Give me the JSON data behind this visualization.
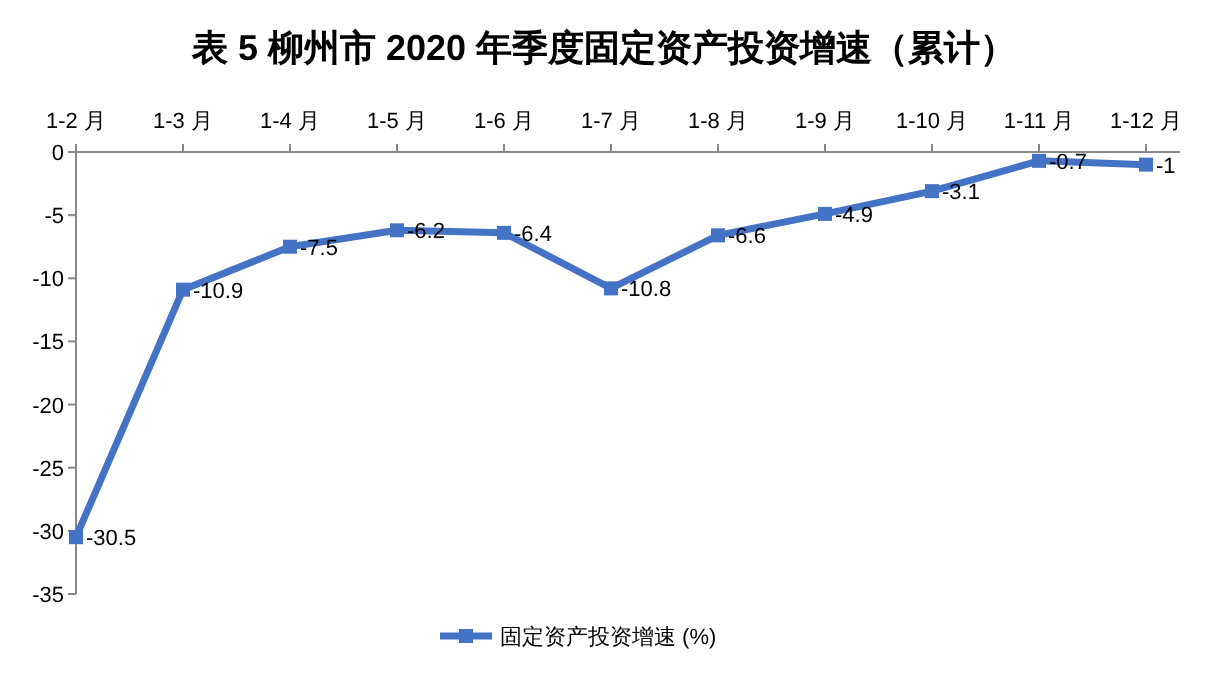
{
  "chart_data": {
    "type": "line",
    "title": "表 5 柳州市 2020 年季度固定资产投资增速（累计）",
    "categories": [
      "1-2 月",
      "1-3 月",
      "1-4 月",
      "1-5 月",
      "1-6 月",
      "1-7 月",
      "1-8 月",
      "1-9 月",
      "1-10 月",
      "1-11 月",
      "1-12 月"
    ],
    "series": [
      {
        "name": "固定资产投资增速 (%)",
        "color": "#4472c4",
        "values": [
          -30.5,
          -10.9,
          -7.5,
          -6.2,
          -6.4,
          -10.8,
          -6.6,
          -4.9,
          -3.1,
          -0.7,
          -1
        ]
      }
    ],
    "ylim": [
      -35,
      0
    ],
    "yticks": [
      -35,
      -30,
      -25,
      -20,
      -15,
      -10,
      -5,
      0
    ],
    "data_labels": true,
    "legend": "bottom",
    "marker": "square",
    "line_style": "solid",
    "grid": false
  }
}
